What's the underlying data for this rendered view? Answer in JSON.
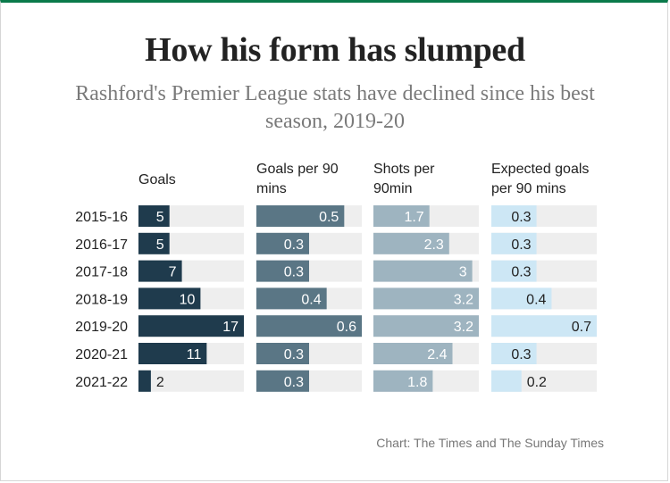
{
  "title": "How his form has slumped",
  "subtitle": "Rashford's Premier League stats have declined since his best season, 2019-20",
  "source": "Chart: The Times and The Sunday Times",
  "colors": {
    "track": "#eeeeee",
    "accent_border": "#0a7a4a",
    "text_dark": "#222222"
  },
  "chart_data": [
    {
      "type": "bar",
      "orientation": "horizontal",
      "title": "Goals",
      "categories": [
        "2015-16",
        "2016-17",
        "2017-18",
        "2018-19",
        "2019-20",
        "2020-21",
        "2021-22"
      ],
      "values": [
        5,
        5,
        7,
        10,
        17,
        11,
        2
      ],
      "labels": [
        "5",
        "5",
        "7",
        "10",
        "17",
        "11",
        "2"
      ],
      "xlim": [
        0,
        17
      ],
      "bar_color": "#1f3b4d",
      "label_color_inside": "#ffffff",
      "label_color_outside": "#222222"
    },
    {
      "type": "bar",
      "orientation": "horizontal",
      "title": "Goals per 90 mins",
      "categories": [
        "2015-16",
        "2016-17",
        "2017-18",
        "2018-19",
        "2019-20",
        "2020-21",
        "2021-22"
      ],
      "values": [
        0.5,
        0.3,
        0.3,
        0.4,
        0.6,
        0.3,
        0.3
      ],
      "labels": [
        "0.5",
        "0.3",
        "0.3",
        "0.4",
        "0.6",
        "0.3",
        "0.3"
      ],
      "xlim": [
        0,
        0.6
      ],
      "bar_color": "#5a7685",
      "label_color_inside": "#ffffff",
      "label_color_outside": "#222222"
    },
    {
      "type": "bar",
      "orientation": "horizontal",
      "title": "Shots per 90min",
      "categories": [
        "2015-16",
        "2016-17",
        "2017-18",
        "2018-19",
        "2019-20",
        "2020-21",
        "2021-22"
      ],
      "values": [
        1.7,
        2.3,
        3.0,
        3.2,
        3.2,
        2.4,
        1.8
      ],
      "labels": [
        "1.7",
        "2.3",
        "3",
        "3.2",
        "3.2",
        "2.4",
        "1.8"
      ],
      "xlim": [
        0,
        3.2
      ],
      "bar_color": "#9eb4c0",
      "label_color_inside": "#ffffff",
      "label_color_outside": "#222222"
    },
    {
      "type": "bar",
      "orientation": "horizontal",
      "title": "Expected goals per 90 mins",
      "categories": [
        "2015-16",
        "2016-17",
        "2017-18",
        "2018-19",
        "2019-20",
        "2020-21",
        "2021-22"
      ],
      "values": [
        0.3,
        0.3,
        0.3,
        0.4,
        0.7,
        0.3,
        0.2
      ],
      "labels": [
        "0.3",
        "0.3",
        "0.3",
        "0.4",
        "0.7",
        "0.3",
        "0.2"
      ],
      "xlim": [
        0,
        0.7
      ],
      "bar_color": "#cde7f5",
      "label_color_inside": "#222222",
      "label_color_outside": "#222222"
    }
  ]
}
